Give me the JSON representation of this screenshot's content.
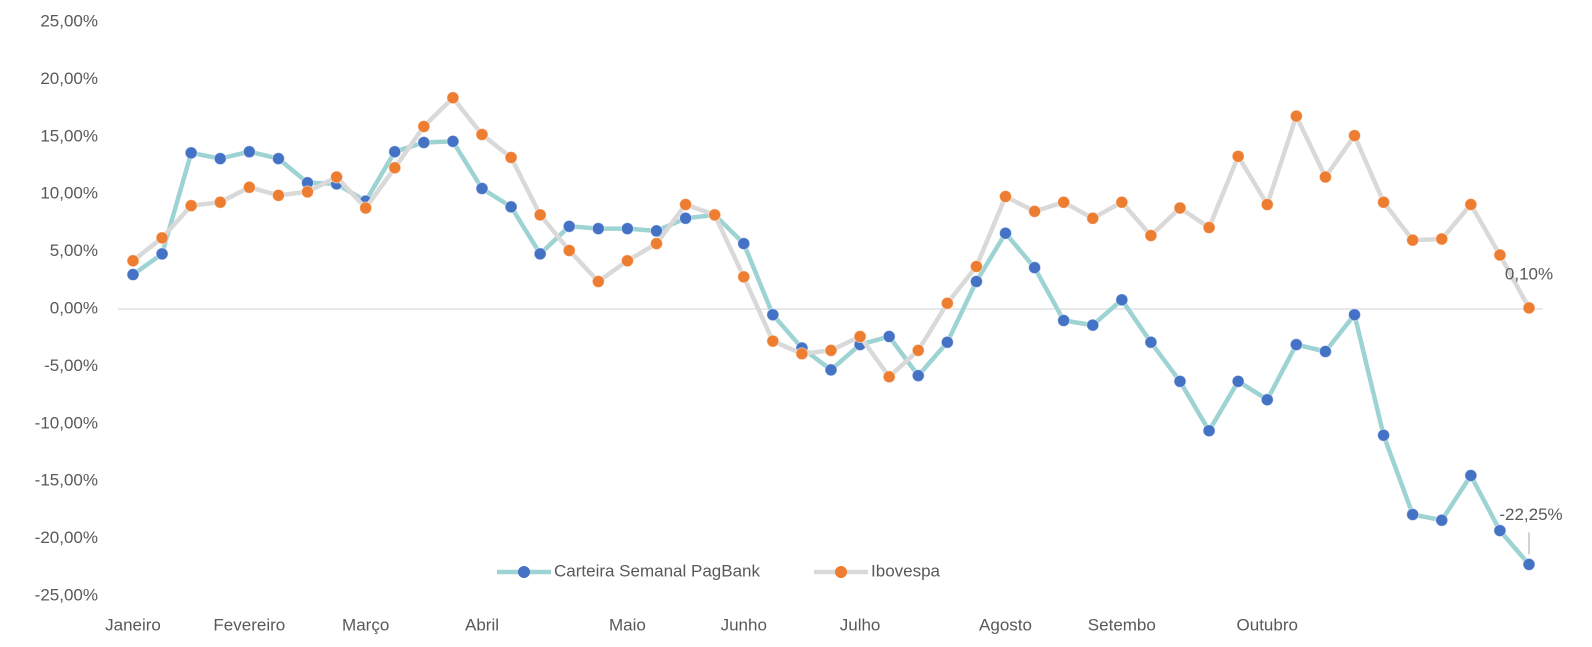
{
  "chart_data": {
    "type": "line",
    "categories": [
      "Janeiro",
      null,
      null,
      null,
      "Fevereiro",
      null,
      null,
      null,
      "Março",
      null,
      null,
      null,
      "Abril",
      null,
      null,
      null,
      null,
      "Maio",
      null,
      null,
      null,
      "Junho",
      null,
      null,
      null,
      "Julho",
      null,
      null,
      null,
      null,
      "Agosto",
      null,
      null,
      null,
      "Setembo",
      null,
      null,
      null,
      null,
      "Outubro",
      null,
      null,
      null,
      null,
      null,
      null,
      null,
      null,
      null
    ],
    "ylim": [
      -25,
      25
    ],
    "yticks": [
      {
        "value": -25,
        "label": "-25,00%"
      },
      {
        "value": -20,
        "label": "-20,00%"
      },
      {
        "value": -15,
        "label": "-15,00%"
      },
      {
        "value": -10,
        "label": "-10,00%"
      },
      {
        "value": -5,
        "label": "-5,00%"
      },
      {
        "value": 0,
        "label": "0,00%"
      },
      {
        "value": 5,
        "label": "5,00%"
      },
      {
        "value": 10,
        "label": "10,00%"
      },
      {
        "value": 15,
        "label": "15,00%"
      },
      {
        "value": 20,
        "label": "20,00%"
      },
      {
        "value": 25,
        "label": "25,00%"
      }
    ],
    "legend": "bottom",
    "series": [
      {
        "name": "Carteira Semanal PagBank",
        "color": "#9dd3d3",
        "marker_color": "#4472c4",
        "values": [
          3.0,
          4.8,
          13.6,
          13.1,
          13.7,
          13.1,
          11.0,
          10.9,
          9.4,
          13.7,
          14.5,
          14.6,
          10.5,
          8.9,
          4.8,
          7.2,
          7.0,
          7.0,
          6.8,
          7.9,
          8.2,
          5.7,
          -0.5,
          -3.4,
          -5.3,
          -3.1,
          -2.4,
          -5.8,
          -2.9,
          2.4,
          6.6,
          3.6,
          -1.0,
          -1.4,
          0.8,
          -2.9,
          -6.3,
          -10.6,
          -6.3,
          -7.9,
          -3.1,
          -3.7,
          -0.5,
          -11.0,
          -17.9,
          -18.4,
          -14.5,
          -19.3,
          -22.25
        ],
        "value_labels": [
          null,
          null,
          null,
          null,
          null,
          null,
          null,
          null,
          null,
          null,
          null,
          null,
          null,
          null,
          null,
          null,
          null,
          null,
          null,
          null,
          null,
          null,
          null,
          null,
          null,
          null,
          null,
          null,
          null,
          null,
          null,
          null,
          null,
          null,
          null,
          null,
          null,
          null,
          null,
          null,
          null,
          null,
          null,
          null,
          null,
          null,
          null,
          null,
          "-22,25%"
        ]
      },
      {
        "name": "Ibovespa",
        "color": "#d9d9d9",
        "marker_color": "#ed7d31",
        "values": [
          4.2,
          6.2,
          9.0,
          9.3,
          10.6,
          9.9,
          10.2,
          11.5,
          8.8,
          12.3,
          15.9,
          18.4,
          15.2,
          13.2,
          8.2,
          5.1,
          2.4,
          4.2,
          5.7,
          9.1,
          8.2,
          2.8,
          -2.8,
          -3.9,
          -3.6,
          -2.4,
          -5.9,
          -3.6,
          0.5,
          3.7,
          9.8,
          8.5,
          9.3,
          7.9,
          9.3,
          6.4,
          8.8,
          7.1,
          13.3,
          9.1,
          16.8,
          11.5,
          15.1,
          9.3,
          6.0,
          6.1,
          9.1,
          4.7,
          0.1
        ],
        "value_labels": [
          null,
          null,
          null,
          null,
          null,
          null,
          null,
          null,
          null,
          null,
          null,
          null,
          null,
          null,
          null,
          null,
          null,
          null,
          null,
          null,
          null,
          null,
          null,
          null,
          null,
          null,
          null,
          null,
          null,
          null,
          null,
          null,
          null,
          null,
          null,
          null,
          null,
          null,
          null,
          null,
          null,
          null,
          null,
          null,
          null,
          null,
          null,
          null,
          "0,10%"
        ]
      }
    ]
  }
}
